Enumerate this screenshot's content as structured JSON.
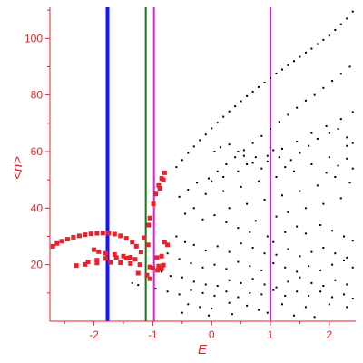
{
  "chart_data": {
    "type": "scatter",
    "title": "",
    "xlabel": "E",
    "ylabel": "<n>",
    "xlim": [
      -2.75,
      2.45
    ],
    "ylim": [
      0,
      111
    ],
    "x_ticks": [
      -2,
      -1,
      0,
      1,
      2
    ],
    "y_ticks": [
      20,
      40,
      60,
      80,
      100
    ],
    "grid": false,
    "legend": "none",
    "colors": {
      "axis": "#e8212b",
      "red_points": "#e8212b",
      "black_points": "#000000",
      "line_blue": "#1414ff",
      "line_green": "#0a7d0a",
      "line_magenta": "#e020e0"
    },
    "vertical_lines": [
      {
        "x": -1.77,
        "color": "#1414ff",
        "width": "thick"
      },
      {
        "x": -1.12,
        "color": "#0a7d0a",
        "width": "medium"
      },
      {
        "x": -0.98,
        "color": "#e020e0",
        "width": "medium"
      },
      {
        "x": 1.0,
        "color": "#e020e0",
        "width": "medium"
      }
    ],
    "series": [
      {
        "color": "#e8212b",
        "marker": "red-square",
        "points": [
          [
            -2.7,
            26.5
          ],
          [
            -2.63,
            27.5
          ],
          [
            -2.55,
            28.3
          ],
          [
            -2.45,
            29.0
          ],
          [
            -2.35,
            29.7
          ],
          [
            -2.25,
            30.2
          ],
          [
            -2.15,
            30.6
          ],
          [
            -2.05,
            30.9
          ],
          [
            -1.95,
            31.1
          ],
          [
            -1.85,
            31.2
          ],
          [
            -1.75,
            31.1
          ],
          [
            -1.65,
            30.8
          ],
          [
            -1.55,
            30.2
          ],
          [
            -1.45,
            29.3
          ],
          [
            -1.35,
            28.0
          ],
          [
            -1.28,
            26.5
          ],
          [
            -1.2,
            24.5
          ],
          [
            -2.0,
            25.3
          ],
          [
            -1.92,
            24.6
          ],
          [
            -1.8,
            24.0
          ],
          [
            -1.65,
            23.6
          ],
          [
            -1.5,
            23.0
          ],
          [
            -1.38,
            22.6
          ],
          [
            -2.1,
            21.0
          ],
          [
            -1.95,
            21.6
          ],
          [
            -1.8,
            22.2
          ],
          [
            -1.62,
            22.5
          ],
          [
            -1.45,
            22.3
          ],
          [
            -1.3,
            21.9
          ],
          [
            -2.3,
            19.7
          ],
          [
            -2.15,
            20.1
          ],
          [
            -1.95,
            20.6
          ],
          [
            -1.72,
            20.8
          ],
          [
            -1.55,
            20.7
          ],
          [
            -1.38,
            20.4
          ],
          [
            -1.22,
            20.0
          ],
          [
            -1.0,
            18.8
          ],
          [
            -0.9,
            19.5
          ],
          [
            -0.82,
            19.8
          ],
          [
            -1.07,
            34.0
          ],
          [
            -1.05,
            36.5
          ],
          [
            -0.99,
            41.5
          ],
          [
            -0.95,
            45.0
          ],
          [
            -0.9,
            48.0
          ],
          [
            -0.85,
            50.5
          ],
          [
            -0.8,
            52.5
          ],
          [
            -0.88,
            47.0
          ],
          [
            -0.82,
            50.0
          ],
          [
            -1.05,
            19.2
          ],
          [
            -0.92,
            18.0
          ],
          [
            -0.85,
            18.5
          ],
          [
            -1.15,
            29.5
          ],
          [
            -1.08,
            27.0
          ],
          [
            -0.93,
            22.5
          ],
          [
            -0.85,
            23.0
          ],
          [
            -0.75,
            27.0
          ],
          [
            -0.8,
            28.0
          ],
          [
            -1.25,
            17.0
          ],
          [
            -1.1,
            16.3
          ],
          [
            -1.05,
            15.0
          ]
        ]
      },
      {
        "color": "#000000",
        "marker": "black-dot",
        "points": [
          [
            -0.6,
            54.5
          ],
          [
            -0.5,
            57.0
          ],
          [
            -0.4,
            59.5
          ],
          [
            -0.3,
            61.8
          ],
          [
            -0.2,
            64.0
          ],
          [
            -0.1,
            66.0
          ],
          [
            0.0,
            68.2
          ],
          [
            0.1,
            70.2
          ],
          [
            0.2,
            72.3
          ],
          [
            0.3,
            74.2
          ],
          [
            0.4,
            76.0
          ],
          [
            0.5,
            77.8
          ],
          [
            0.6,
            79.6
          ],
          [
            0.7,
            81.2
          ],
          [
            0.8,
            82.8
          ],
          [
            0.9,
            84.4
          ],
          [
            1.0,
            86.0
          ],
          [
            1.1,
            87.6
          ],
          [
            1.2,
            89.0
          ],
          [
            1.3,
            90.5
          ],
          [
            1.4,
            92.0
          ],
          [
            1.5,
            93.5
          ],
          [
            1.6,
            95.0
          ],
          [
            1.7,
            96.4
          ],
          [
            1.8,
            98.0
          ],
          [
            1.9,
            99.5
          ],
          [
            2.0,
            101.0
          ],
          [
            2.1,
            103.0
          ],
          [
            2.2,
            105.0
          ],
          [
            2.3,
            107.0
          ],
          [
            2.4,
            109.5
          ],
          [
            -0.05,
            50.5
          ],
          [
            0.1,
            53.0
          ],
          [
            0.25,
            55.5
          ],
          [
            0.4,
            58.0
          ],
          [
            0.55,
            60.5
          ],
          [
            0.7,
            63.0
          ],
          [
            0.85,
            65.5
          ],
          [
            1.0,
            68.0
          ],
          [
            1.15,
            70.5
          ],
          [
            1.3,
            73.0
          ],
          [
            1.45,
            75.5
          ],
          [
            1.6,
            78.0
          ],
          [
            1.75,
            80.0
          ],
          [
            1.9,
            82.5
          ],
          [
            2.05,
            85.0
          ],
          [
            2.2,
            87.5
          ],
          [
            2.35,
            90.0
          ],
          [
            -0.55,
            44.0
          ],
          [
            -0.4,
            46.5
          ],
          [
            -0.25,
            49.0
          ],
          [
            0.0,
            49.5
          ],
          [
            0.2,
            51.0
          ],
          [
            0.45,
            53.0
          ],
          [
            0.7,
            56.0
          ],
          [
            0.95,
            58.5
          ],
          [
            1.2,
            61.0
          ],
          [
            1.45,
            63.5
          ],
          [
            1.7,
            66.5
          ],
          [
            1.95,
            69.0
          ],
          [
            2.2,
            71.5
          ],
          [
            2.4,
            74.0
          ],
          [
            -0.1,
            45.0
          ],
          [
            0.2,
            46.0
          ],
          [
            0.5,
            47.5
          ],
          [
            0.8,
            49.5
          ],
          [
            1.1,
            51.0
          ],
          [
            1.4,
            53.0
          ],
          [
            1.7,
            55.5
          ],
          [
            2.0,
            58.0
          ],
          [
            2.3,
            62.0
          ],
          [
            0.3,
            40.0
          ],
          [
            0.6,
            41.5
          ],
          [
            0.9,
            43.0
          ],
          [
            1.2,
            44.5
          ],
          [
            1.5,
            46.0
          ],
          [
            1.8,
            48.0
          ],
          [
            2.1,
            51.0
          ],
          [
            2.4,
            54.0
          ],
          [
            1.1,
            37.0
          ],
          [
            1.3,
            38.5
          ],
          [
            1.6,
            40.0
          ],
          [
            1.9,
            41.5
          ],
          [
            2.2,
            43.5
          ],
          [
            0.05,
            60.0
          ],
          [
            0.15,
            61.5
          ],
          [
            0.3,
            62.5
          ],
          [
            0.45,
            60.0
          ],
          [
            0.55,
            58.5
          ],
          [
            0.6,
            55.5
          ],
          [
            0.75,
            58.0
          ],
          [
            0.85,
            54.0
          ],
          [
            0.95,
            56.5
          ],
          [
            1.05,
            60.5
          ],
          [
            1.15,
            58.0
          ],
          [
            1.25,
            54.5
          ],
          [
            1.35,
            57.0
          ],
          [
            1.5,
            59.5
          ],
          [
            1.65,
            62.0
          ],
          [
            1.8,
            64.5
          ],
          [
            2.0,
            66.5
          ],
          [
            2.15,
            68.0
          ],
          [
            2.3,
            65.0
          ],
          [
            2.4,
            63.0
          ],
          [
            2.3,
            57.5
          ],
          [
            2.15,
            55.0
          ],
          [
            1.95,
            52.5
          ],
          [
            2.35,
            49.0
          ],
          [
            -0.45,
            38.0
          ],
          [
            -0.3,
            40.0
          ],
          [
            -0.15,
            36.0
          ],
          [
            0.05,
            37.5
          ],
          [
            0.25,
            35.0
          ],
          [
            0.45,
            33.0
          ],
          [
            0.65,
            31.5
          ],
          [
            0.75,
            35.5
          ],
          [
            0.95,
            30.0
          ],
          [
            1.05,
            28.0
          ],
          [
            1.25,
            31.5
          ],
          [
            1.45,
            33.5
          ],
          [
            1.6,
            31.0
          ],
          [
            1.85,
            34.0
          ],
          [
            2.05,
            32.0
          ],
          [
            2.25,
            30.0
          ],
          [
            2.4,
            28.5
          ],
          [
            -0.6,
            30.0
          ],
          [
            -0.45,
            28.0
          ],
          [
            -0.3,
            27.0
          ],
          [
            -0.1,
            25.0
          ],
          [
            0.1,
            26.5
          ],
          [
            0.3,
            24.5
          ],
          [
            0.5,
            27.5
          ],
          [
            0.7,
            26.0
          ],
          [
            0.9,
            24.0
          ],
          [
            1.1,
            23.5
          ],
          [
            1.3,
            25.5
          ],
          [
            1.5,
            23.0
          ],
          [
            1.7,
            24.5
          ],
          [
            1.9,
            26.0
          ],
          [
            2.1,
            24.0
          ],
          [
            2.3,
            22.5
          ],
          [
            -0.75,
            24.0
          ],
          [
            -0.55,
            22.0
          ],
          [
            -0.35,
            20.5
          ],
          [
            -0.15,
            19.0
          ],
          [
            0.05,
            20.0
          ],
          [
            0.25,
            18.5
          ],
          [
            0.45,
            21.0
          ],
          [
            0.65,
            19.5
          ],
          [
            0.85,
            18.0
          ],
          [
            1.05,
            20.5
          ],
          [
            1.25,
            19.0
          ],
          [
            1.45,
            17.5
          ],
          [
            1.65,
            19.5
          ],
          [
            1.85,
            18.0
          ],
          [
            2.05,
            20.0
          ],
          [
            2.25,
            21.5
          ],
          [
            2.4,
            19.0
          ],
          [
            -0.85,
            17.5
          ],
          [
            -0.7,
            16.0
          ],
          [
            -0.5,
            15.5
          ],
          [
            -0.3,
            14.0
          ],
          [
            -0.1,
            13.0
          ],
          [
            0.1,
            12.5
          ],
          [
            0.3,
            14.5
          ],
          [
            0.5,
            13.5
          ],
          [
            0.7,
            15.0
          ],
          [
            0.9,
            13.0
          ],
          [
            1.1,
            12.0
          ],
          [
            1.3,
            14.0
          ],
          [
            1.5,
            15.5
          ],
          [
            1.7,
            13.5
          ],
          [
            1.9,
            12.5
          ],
          [
            2.1,
            14.5
          ],
          [
            2.3,
            13.0
          ],
          [
            -1.35,
            13.5
          ],
          [
            -1.25,
            12.8
          ],
          [
            -0.95,
            11.5
          ],
          [
            -0.75,
            10.5
          ],
          [
            -0.55,
            9.5
          ],
          [
            -0.35,
            11.0
          ],
          [
            -0.15,
            10.0
          ],
          [
            0.05,
            9.0
          ],
          [
            0.25,
            10.5
          ],
          [
            0.45,
            8.5
          ],
          [
            0.65,
            10.0
          ],
          [
            0.85,
            9.5
          ],
          [
            1.05,
            11.0
          ],
          [
            1.25,
            9.0
          ],
          [
            1.45,
            10.5
          ],
          [
            1.65,
            9.0
          ],
          [
            1.85,
            10.5
          ],
          [
            2.05,
            8.5
          ],
          [
            2.25,
            9.5
          ],
          [
            2.4,
            8.0
          ],
          [
            -0.4,
            6.0
          ],
          [
            -0.2,
            5.0
          ],
          [
            0.0,
            4.5
          ],
          [
            0.3,
            6.5
          ],
          [
            0.6,
            5.5
          ],
          [
            0.8,
            4.0
          ],
          [
            1.2,
            6.0
          ],
          [
            1.6,
            5.0
          ],
          [
            2.0,
            6.0
          ],
          [
            2.3,
            5.0
          ],
          [
            -0.5,
            3.0
          ],
          [
            -0.05,
            2.0
          ],
          [
            0.35,
            2.5
          ],
          [
            0.95,
            3.0
          ],
          [
            1.4,
            2.0
          ],
          [
            1.75,
            1.5
          ]
        ]
      }
    ]
  }
}
